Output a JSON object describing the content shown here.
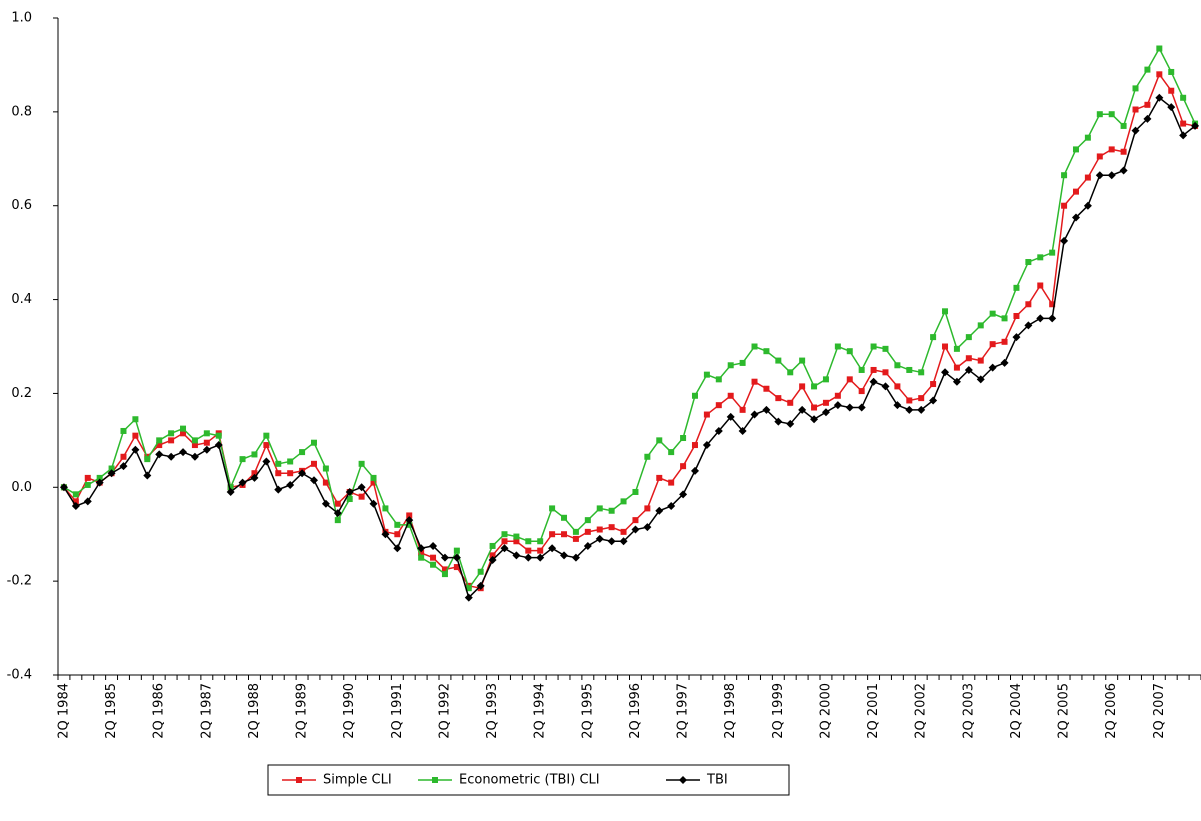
{
  "chart_data": {
    "type": "line",
    "categories": [
      "2Q 1984",
      null,
      null,
      null,
      "2Q 1985",
      null,
      null,
      null,
      "2Q 1986",
      null,
      null,
      null,
      "2Q 1987",
      null,
      null,
      null,
      "2Q 1988",
      null,
      null,
      null,
      "2Q 1989",
      null,
      null,
      null,
      "2Q 1990",
      null,
      null,
      null,
      "2Q 1991",
      null,
      null,
      null,
      "2Q 1992",
      null,
      null,
      null,
      "2Q 1993",
      null,
      null,
      null,
      "2Q 1994",
      null,
      null,
      null,
      "2Q 1995",
      null,
      null,
      null,
      "2Q 1996",
      null,
      null,
      null,
      "2Q 1997",
      null,
      null,
      null,
      "2Q 1998",
      null,
      null,
      null,
      "2Q 1999",
      null,
      null,
      null,
      "2Q 2000",
      null,
      null,
      null,
      "2Q 2001",
      null,
      null,
      null,
      "2Q 2002",
      null,
      null,
      null,
      "2Q 2003",
      null,
      null,
      null,
      "2Q 2004",
      null,
      null,
      null,
      "2Q 2005",
      null,
      null,
      null,
      "2Q 2006",
      null,
      null,
      null,
      "2Q 2007",
      null,
      null,
      null
    ],
    "series": [
      {
        "name": "Simple CLI",
        "color": "#e31a1c",
        "marker": "square",
        "values": [
          0.0,
          -0.03,
          0.02,
          0.01,
          0.03,
          0.065,
          0.11,
          0.065,
          0.09,
          0.1,
          0.115,
          0.09,
          0.095,
          0.115,
          0.0,
          0.005,
          0.03,
          0.09,
          0.03,
          0.03,
          0.035,
          0.05,
          0.01,
          -0.035,
          -0.01,
          -0.02,
          0.01,
          -0.095,
          -0.1,
          -0.06,
          -0.14,
          -0.15,
          -0.175,
          -0.17,
          -0.21,
          -0.215,
          -0.145,
          -0.115,
          -0.115,
          -0.135,
          -0.135,
          -0.1,
          -0.1,
          -0.11,
          -0.095,
          -0.09,
          -0.085,
          -0.095,
          -0.07,
          -0.045,
          0.02,
          0.01,
          0.045,
          0.09,
          0.155,
          0.175,
          0.195,
          0.165,
          0.225,
          0.21,
          0.19,
          0.18,
          0.215,
          0.17,
          0.18,
          0.195,
          0.23,
          0.205,
          0.25,
          0.245,
          0.215,
          0.185,
          0.19,
          0.22,
          0.3,
          0.255,
          0.275,
          0.27,
          0.305,
          0.31,
          0.365,
          0.39,
          0.43,
          0.39,
          0.6,
          0.63,
          0.66,
          0.705,
          0.72,
          0.715,
          0.805,
          0.815,
          0.88,
          0.845,
          0.775,
          0.77
        ]
      },
      {
        "name": "Econometric (TBI) CLI",
        "color": "#2db92d",
        "marker": "square",
        "values": [
          0.0,
          -0.015,
          0.005,
          0.02,
          0.04,
          0.12,
          0.145,
          0.06,
          0.1,
          0.115,
          0.125,
          0.1,
          0.115,
          0.11,
          0.0,
          0.06,
          0.07,
          0.11,
          0.05,
          0.055,
          0.075,
          0.095,
          0.04,
          -0.07,
          -0.025,
          0.05,
          0.02,
          -0.045,
          -0.08,
          -0.08,
          -0.15,
          -0.165,
          -0.185,
          -0.135,
          -0.215,
          -0.18,
          -0.125,
          -0.1,
          -0.105,
          -0.115,
          -0.115,
          -0.045,
          -0.065,
          -0.095,
          -0.07,
          -0.045,
          -0.05,
          -0.03,
          -0.01,
          0.065,
          0.1,
          0.075,
          0.105,
          0.195,
          0.24,
          0.23,
          0.26,
          0.265,
          0.3,
          0.29,
          0.27,
          0.245,
          0.27,
          0.215,
          0.23,
          0.3,
          0.29,
          0.25,
          0.3,
          0.295,
          0.26,
          0.25,
          0.245,
          0.32,
          0.375,
          0.295,
          0.32,
          0.345,
          0.37,
          0.36,
          0.425,
          0.48,
          0.49,
          0.5,
          0.665,
          0.72,
          0.745,
          0.795,
          0.795,
          0.77,
          0.85,
          0.89,
          0.935,
          0.885,
          0.83,
          0.775
        ]
      },
      {
        "name": "TBI",
        "color": "#000000",
        "marker": "diamond",
        "values": [
          0.0,
          -0.04,
          -0.03,
          0.01,
          0.03,
          0.045,
          0.08,
          0.025,
          0.07,
          0.065,
          0.075,
          0.065,
          0.08,
          0.09,
          -0.01,
          0.01,
          0.02,
          0.055,
          -0.005,
          0.005,
          0.03,
          0.015,
          -0.035,
          -0.055,
          -0.01,
          0.0,
          -0.035,
          -0.1,
          -0.13,
          -0.07,
          -0.13,
          -0.125,
          -0.15,
          -0.15,
          -0.235,
          -0.21,
          -0.155,
          -0.13,
          -0.145,
          -0.15,
          -0.15,
          -0.13,
          -0.145,
          -0.15,
          -0.125,
          -0.11,
          -0.115,
          -0.115,
          -0.09,
          -0.085,
          -0.05,
          -0.04,
          -0.015,
          0.035,
          0.09,
          0.12,
          0.15,
          0.12,
          0.155,
          0.165,
          0.14,
          0.135,
          0.165,
          0.145,
          0.16,
          0.175,
          0.17,
          0.17,
          0.225,
          0.215,
          0.175,
          0.165,
          0.165,
          0.185,
          0.245,
          0.225,
          0.25,
          0.23,
          0.255,
          0.265,
          0.32,
          0.345,
          0.36,
          0.36,
          0.525,
          0.575,
          0.6,
          0.665,
          0.665,
          0.675,
          0.76,
          0.785,
          0.83,
          0.81,
          0.75,
          0.77
        ]
      }
    ],
    "ylim": [
      -0.4,
      1.0
    ],
    "yticks": [
      -0.4,
      -0.2,
      {
        "value": 0,
        "label": "0.0"
      },
      0.2,
      0.4,
      0.6,
      0.8,
      {
        "value": 1,
        "label": "1.0"
      }
    ],
    "legend": "bottom"
  }
}
